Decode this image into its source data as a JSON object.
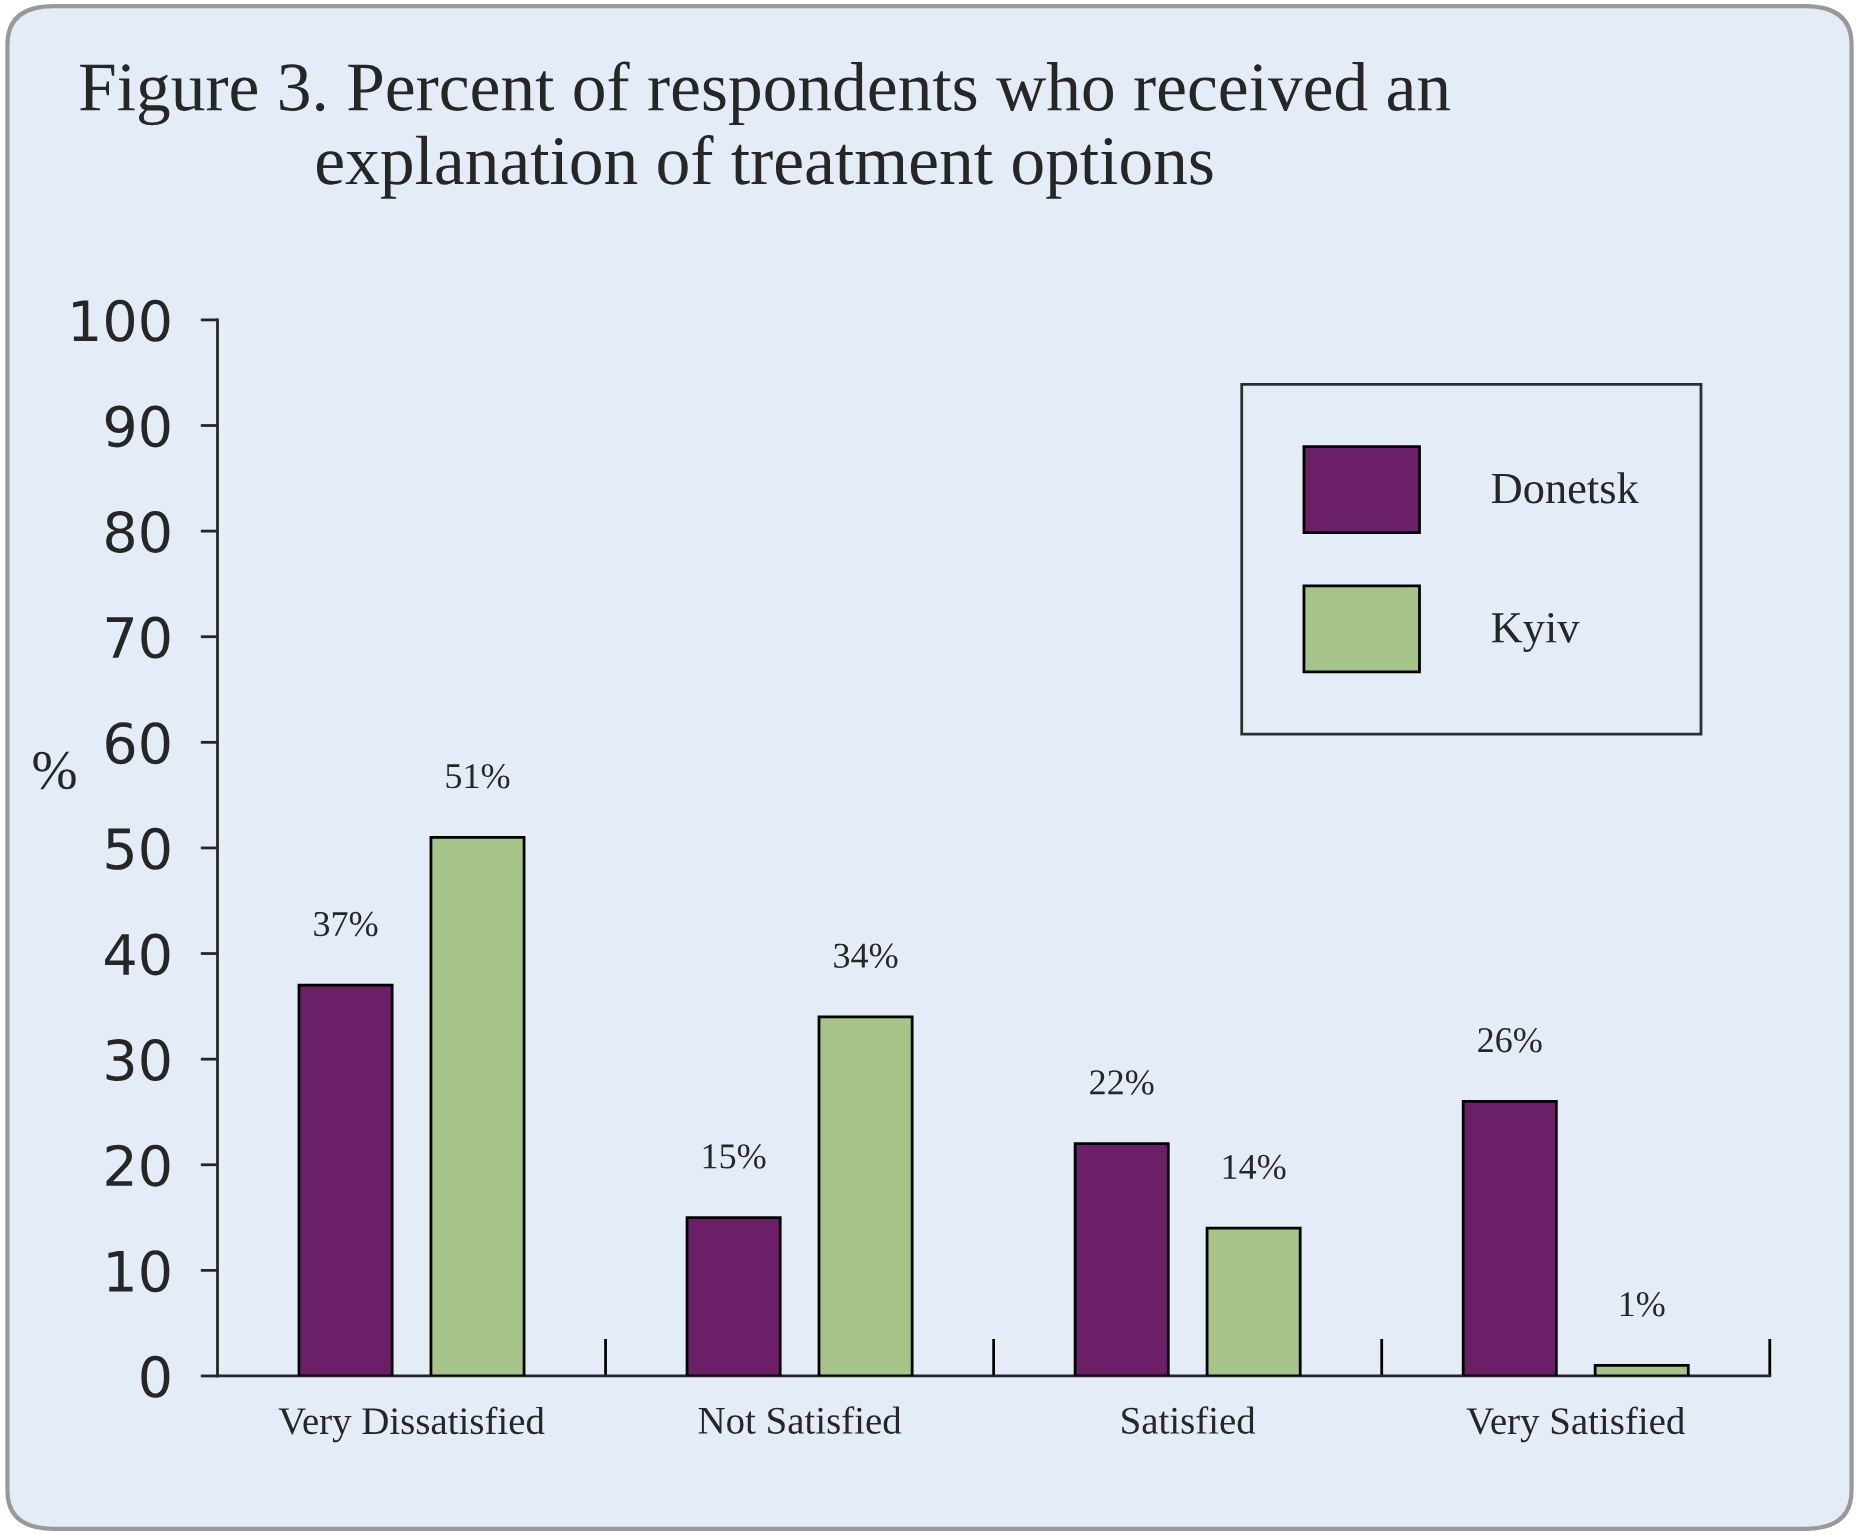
{
  "chart_data": {
    "type": "bar",
    "title": "Figure 3. Percent of respondents who received an\nexplanation of treatment options",
    "ylabel": "%",
    "categories": [
      "Very Dissatisfied",
      "Not Satisfied",
      "Satisfied",
      "Very Satisfied"
    ],
    "series": [
      {
        "name": "Donetsk",
        "color": "#6a1f66",
        "values": [
          37,
          15,
          22,
          26
        ],
        "value_labels": [
          "37%",
          "15%",
          "22%",
          "26%"
        ]
      },
      {
        "name": "Kyiv",
        "color": "#a6c489",
        "values": [
          51,
          34,
          14,
          1
        ],
        "value_labels": [
          "51%",
          "34%",
          "14%",
          "1%"
        ]
      }
    ],
    "ylim": [
      0,
      100
    ],
    "yticks": [
      0,
      10,
      20,
      30,
      40,
      50,
      60,
      70,
      80,
      90,
      100
    ],
    "grid": false,
    "legend": "top right"
  }
}
